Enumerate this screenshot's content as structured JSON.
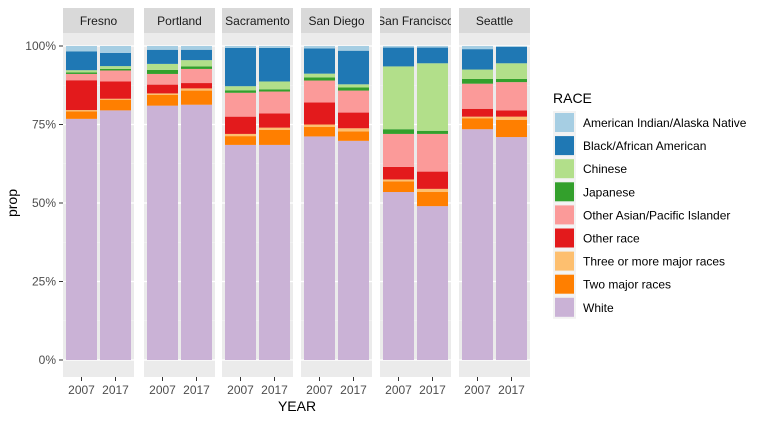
{
  "chart_data": {
    "type": "bar",
    "stacked": true,
    "facet_by": "city",
    "xlabel": "YEAR",
    "ylabel": "prop",
    "ylim": [
      0,
      1
    ],
    "y_ticks": [
      "0%",
      "25%",
      "50%",
      "75%",
      "100%"
    ],
    "grid": true,
    "legend_position": "right",
    "legend_title": "RACE",
    "categories": [
      "2007",
      "2017"
    ],
    "series": [
      {
        "name": "American Indian/Alaska Native",
        "color": "#a6cee3"
      },
      {
        "name": "Black/African American",
        "color": "#1f78b4"
      },
      {
        "name": "Chinese",
        "color": "#b2df8a"
      },
      {
        "name": "Japanese",
        "color": "#33a02c"
      },
      {
        "name": "Other Asian/Pacific Islander",
        "color": "#fb9a99"
      },
      {
        "name": "Other race",
        "color": "#e31a1c"
      },
      {
        "name": "Three or more major races",
        "color": "#fdbf6f"
      },
      {
        "name": "Two major races",
        "color": "#ff7f00"
      },
      {
        "name": "White",
        "color": "#cab2d6"
      }
    ],
    "panels": [
      {
        "city": "Fresno",
        "years": {
          "2007": [
            0.017,
            0.06,
            0.007,
            0.005,
            0.02,
            0.095,
            0.004,
            0.024,
            0.768
          ],
          "2017": [
            0.022,
            0.042,
            0.009,
            0.005,
            0.035,
            0.055,
            0.003,
            0.034,
            0.795
          ]
        }
      },
      {
        "city": "Portland",
        "years": {
          "2007": [
            0.012,
            0.045,
            0.019,
            0.013,
            0.034,
            0.028,
            0.005,
            0.034,
            0.81
          ],
          "2017": [
            0.012,
            0.033,
            0.02,
            0.008,
            0.045,
            0.017,
            0.007,
            0.045,
            0.813
          ]
        }
      },
      {
        "city": "Sacramento",
        "years": {
          "2007": [
            0.006,
            0.122,
            0.013,
            0.008,
            0.076,
            0.055,
            0.007,
            0.028,
            0.685
          ],
          "2017": [
            0.006,
            0.107,
            0.025,
            0.007,
            0.07,
            0.045,
            0.007,
            0.048,
            0.685
          ]
        }
      },
      {
        "city": "San Diego",
        "years": {
          "2007": [
            0.008,
            0.08,
            0.012,
            0.01,
            0.07,
            0.07,
            0.008,
            0.03,
            0.712
          ],
          "2017": [
            0.015,
            0.107,
            0.01,
            0.01,
            0.07,
            0.05,
            0.01,
            0.03,
            0.698
          ]
        }
      },
      {
        "city": "San Francisco",
        "years": {
          "2007": [
            0.005,
            0.06,
            0.2,
            0.015,
            0.105,
            0.04,
            0.006,
            0.034,
            0.535
          ],
          "2017": [
            0.005,
            0.05,
            0.215,
            0.01,
            0.12,
            0.055,
            0.01,
            0.045,
            0.49
          ]
        }
      },
      {
        "city": "Seattle",
        "years": {
          "2007": [
            0.01,
            0.065,
            0.03,
            0.015,
            0.08,
            0.025,
            0.005,
            0.035,
            0.735
          ],
          "2017": [
            0.003,
            0.052,
            0.05,
            0.01,
            0.09,
            0.02,
            0.01,
            0.055,
            0.71
          ]
        }
      }
    ]
  }
}
